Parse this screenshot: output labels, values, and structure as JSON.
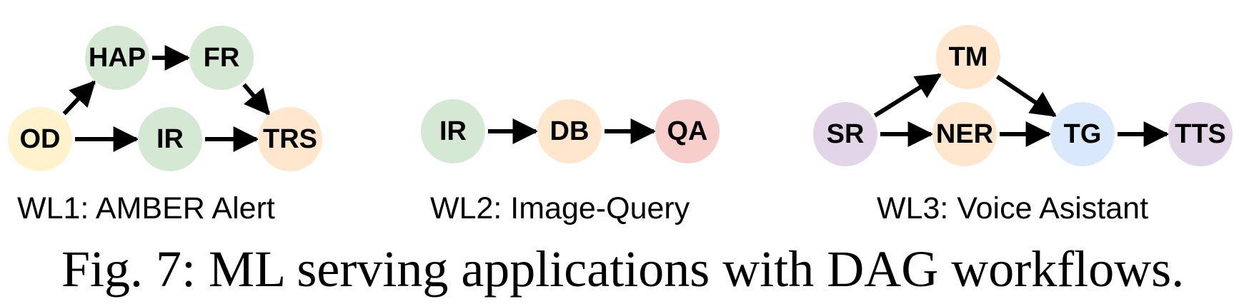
{
  "colors": {
    "green": "#d5e8d4",
    "orange": "#ffe6cc",
    "yellow": "#fff2cc",
    "red": "#f8cecc",
    "blue": "#dae8fc",
    "purple": "#e1d5e7",
    "edge": "#000000"
  },
  "workflows": [
    {
      "label": "WL1:   AMBER Alert",
      "nodes": [
        {
          "id": "OD",
          "label": "OD",
          "color": "yellow"
        },
        {
          "id": "HAP",
          "label": "HAP",
          "color": "green"
        },
        {
          "id": "FR",
          "label": "FR",
          "color": "green"
        },
        {
          "id": "IR",
          "label": "IR",
          "color": "green"
        },
        {
          "id": "TRS",
          "label": "TRS",
          "color": "orange"
        }
      ],
      "edges": [
        [
          "OD",
          "HAP"
        ],
        [
          "HAP",
          "FR"
        ],
        [
          "FR",
          "TRS"
        ],
        [
          "OD",
          "IR"
        ],
        [
          "IR",
          "TRS"
        ]
      ]
    },
    {
      "label": "WL2:  Image-Query",
      "nodes": [
        {
          "id": "IR",
          "label": "IR",
          "color": "green"
        },
        {
          "id": "DB",
          "label": "DB",
          "color": "orange"
        },
        {
          "id": "QA",
          "label": "QA",
          "color": "red"
        }
      ],
      "edges": [
        [
          "IR",
          "DB"
        ],
        [
          "DB",
          "QA"
        ]
      ]
    },
    {
      "label": "WL3:  Voice Asistant",
      "nodes": [
        {
          "id": "SR",
          "label": "SR",
          "color": "purple"
        },
        {
          "id": "TM",
          "label": "TM",
          "color": "orange"
        },
        {
          "id": "NER",
          "label": "NER",
          "color": "orange"
        },
        {
          "id": "TG",
          "label": "TG",
          "color": "blue"
        },
        {
          "id": "TTS",
          "label": "TTS",
          "color": "purple"
        }
      ],
      "edges": [
        [
          "SR",
          "TM"
        ],
        [
          "TM",
          "TG"
        ],
        [
          "SR",
          "NER"
        ],
        [
          "NER",
          "TG"
        ],
        [
          "TG",
          "TTS"
        ]
      ]
    }
  ],
  "caption": "Fig. 7: ML serving applications with DAG workflows."
}
